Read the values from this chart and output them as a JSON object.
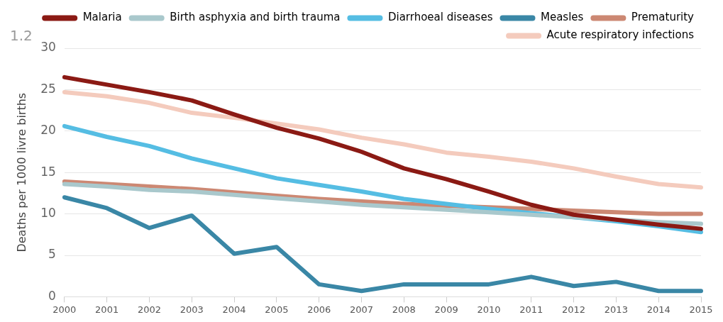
{
  "chart_data": {
    "type": "line",
    "ylabel": "Deaths per 1000 livre births",
    "annotations": [
      "1.2"
    ],
    "categories": [
      "2000",
      "2001",
      "2002",
      "2003",
      "2004",
      "2005",
      "2006",
      "2007",
      "2008",
      "2009",
      "2010",
      "2011",
      "2012",
      "2013",
      "2014",
      "2015"
    ],
    "ylim": [
      0,
      30
    ],
    "yticks": [
      0,
      5,
      10,
      15,
      20,
      25,
      30
    ],
    "grid": "y",
    "legend": "top right",
    "marker": "none",
    "line_style": "solid",
    "series": [
      {
        "name": "Malaria",
        "color": "#8b1a14",
        "values": [
          26.5,
          25.6,
          24.7,
          23.7,
          22.0,
          20.4,
          19.1,
          17.5,
          15.5,
          14.2,
          12.7,
          11.1,
          9.9,
          9.3,
          8.7,
          8.2
        ]
      },
      {
        "name": "Birth asphyxia and birth trauma",
        "color": "#a9c8cc",
        "values": [
          13.6,
          13.3,
          12.9,
          12.7,
          12.3,
          11.9,
          11.5,
          11.1,
          10.8,
          10.5,
          10.2,
          9.9,
          9.6,
          9.3,
          9.0,
          8.8
        ]
      },
      {
        "name": "Diarrhoeal diseases",
        "color": "#55bde3",
        "values": [
          20.6,
          19.3,
          18.2,
          16.7,
          15.5,
          14.3,
          13.5,
          12.7,
          11.8,
          11.2,
          10.6,
          10.1,
          9.6,
          9.1,
          8.5,
          7.8
        ]
      },
      {
        "name": "Measles",
        "color": "#3a87a6",
        "values": [
          12.0,
          10.7,
          8.3,
          9.8,
          5.2,
          6.0,
          1.5,
          0.7,
          1.5,
          1.5,
          1.5,
          2.4,
          1.3,
          1.8,
          0.7,
          0.7
        ]
      },
      {
        "name": "Prematurity",
        "color": "#cc8873",
        "values": [
          13.9,
          13.6,
          13.3,
          13.0,
          12.6,
          12.2,
          11.8,
          11.5,
          11.2,
          11.0,
          10.8,
          10.6,
          10.4,
          10.2,
          10.0,
          10.0
        ]
      },
      {
        "name": "Acute respiratory infections",
        "color": "#f4cbbd",
        "values": [
          24.7,
          24.2,
          23.4,
          22.2,
          21.6,
          20.9,
          20.2,
          19.2,
          18.4,
          17.4,
          16.9,
          16.3,
          15.5,
          14.5,
          13.6,
          13.2
        ]
      }
    ]
  }
}
